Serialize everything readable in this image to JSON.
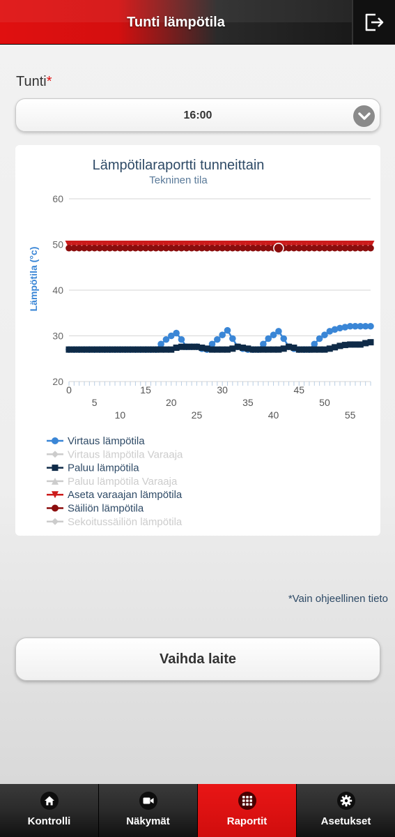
{
  "header": {
    "title": "Tunti lämpötila"
  },
  "hour_field": {
    "label": "Tunti",
    "required_mark": "*",
    "value": "16:00"
  },
  "chart_data": {
    "type": "line",
    "title": "Lämpötilaraportti tunneittain",
    "subtitle": "Tekninen tila",
    "ylabel": "Lämpötila (°c)",
    "xlabel": "",
    "ylim": [
      20,
      60
    ],
    "yticks": [
      20,
      30,
      40,
      50,
      60
    ],
    "xlim": [
      0,
      59
    ],
    "xticks_row1": [
      "0",
      "15",
      "30",
      "45"
    ],
    "xticks_row2": [
      "5",
      "20",
      "35",
      "50"
    ],
    "xticks_row3": [
      "10",
      "25",
      "40",
      "55"
    ],
    "grid": true,
    "legend_position": "bottom",
    "series": [
      {
        "name": "Virtaus lämpötila",
        "color": "#3a86d6",
        "marker": "circle",
        "visible": true,
        "points": [
          [
            0,
            27
          ],
          [
            1,
            27
          ],
          [
            2,
            27
          ],
          [
            3,
            27
          ],
          [
            4,
            27
          ],
          [
            5,
            27
          ],
          [
            6,
            27
          ],
          [
            7,
            27
          ],
          [
            8,
            27
          ],
          [
            9,
            27
          ],
          [
            10,
            27
          ],
          [
            11,
            27
          ],
          [
            12,
            27
          ],
          [
            13,
            27
          ],
          [
            14,
            27
          ],
          [
            15,
            27
          ],
          [
            16,
            27
          ],
          [
            17,
            27
          ],
          [
            18,
            28.2
          ],
          [
            19,
            29.2
          ],
          [
            20,
            30
          ],
          [
            21,
            30.6
          ],
          [
            22,
            29.2
          ],
          [
            23,
            27.6
          ],
          [
            24,
            27.6
          ],
          [
            25,
            27.6
          ],
          [
            26,
            27.2
          ],
          [
            27,
            27
          ],
          [
            28,
            28.2
          ],
          [
            29,
            29.2
          ],
          [
            30,
            30.2
          ],
          [
            31,
            31.2
          ],
          [
            32,
            29.4
          ],
          [
            33,
            27.6
          ],
          [
            34,
            27.2
          ],
          [
            35,
            27
          ],
          [
            36,
            27
          ],
          [
            37,
            27
          ],
          [
            38,
            28.2
          ],
          [
            39,
            29.4
          ],
          [
            40,
            30.2
          ],
          [
            41,
            31
          ],
          [
            42,
            29.4
          ],
          [
            43,
            27.6
          ],
          [
            44,
            27.2
          ],
          [
            45,
            27
          ],
          [
            46,
            27
          ],
          [
            47,
            27
          ],
          [
            48,
            28.2
          ],
          [
            49,
            29.4
          ],
          [
            50,
            30.2
          ],
          [
            51,
            31
          ],
          [
            52,
            31.4
          ],
          [
            53,
            31.7
          ],
          [
            54,
            31.9
          ],
          [
            55,
            32.1
          ],
          [
            56,
            32.1
          ],
          [
            57,
            32.1
          ],
          [
            58,
            32.1
          ],
          [
            59,
            32.1
          ]
        ]
      },
      {
        "name": "Virtaus lämpötila Varaaja",
        "color": "#c8c8c8",
        "marker": "diamond",
        "visible": false,
        "points": []
      },
      {
        "name": "Paluu lämpötila",
        "color": "#0e2a47",
        "marker": "square",
        "visible": true,
        "points": [
          [
            0,
            27
          ],
          [
            1,
            27
          ],
          [
            2,
            27
          ],
          [
            3,
            27
          ],
          [
            4,
            27
          ],
          [
            5,
            27
          ],
          [
            6,
            27
          ],
          [
            7,
            27
          ],
          [
            8,
            27
          ],
          [
            9,
            27
          ],
          [
            10,
            27
          ],
          [
            11,
            27
          ],
          [
            12,
            27
          ],
          [
            13,
            27
          ],
          [
            14,
            27
          ],
          [
            15,
            27
          ],
          [
            16,
            27
          ],
          [
            17,
            27
          ],
          [
            18,
            27
          ],
          [
            19,
            27
          ],
          [
            20,
            27
          ],
          [
            21,
            27.4
          ],
          [
            22,
            27.6
          ],
          [
            23,
            27.6
          ],
          [
            24,
            27.6
          ],
          [
            25,
            27.6
          ],
          [
            26,
            27.4
          ],
          [
            27,
            27.2
          ],
          [
            28,
            27
          ],
          [
            29,
            27
          ],
          [
            30,
            27
          ],
          [
            31,
            27
          ],
          [
            32,
            27.2
          ],
          [
            33,
            27.6
          ],
          [
            34,
            27.4
          ],
          [
            35,
            27.2
          ],
          [
            36,
            27
          ],
          [
            37,
            27
          ],
          [
            38,
            27
          ],
          [
            39,
            27
          ],
          [
            40,
            27
          ],
          [
            41,
            27
          ],
          [
            42,
            27.2
          ],
          [
            43,
            27.6
          ],
          [
            44,
            27.4
          ],
          [
            45,
            27
          ],
          [
            46,
            27
          ],
          [
            47,
            27
          ],
          [
            48,
            27
          ],
          [
            49,
            27
          ],
          [
            50,
            27
          ],
          [
            51,
            27.2
          ],
          [
            52,
            27.5
          ],
          [
            53,
            27.8
          ],
          [
            54,
            28
          ],
          [
            55,
            28.1
          ],
          [
            56,
            28.1
          ],
          [
            57,
            28.1
          ],
          [
            58,
            28.4
          ],
          [
            59,
            28.6
          ]
        ]
      },
      {
        "name": "Paluu lämpötila Varaaja",
        "color": "#c8c8c8",
        "marker": "triangle",
        "visible": false,
        "points": []
      },
      {
        "name": "Aseta varaajan lämpötila",
        "color": "#cc1b1b",
        "marker": "triangle-down",
        "visible": true,
        "points": [
          [
            0,
            50
          ],
          [
            1,
            50
          ],
          [
            2,
            50
          ],
          [
            3,
            50
          ],
          [
            4,
            50
          ],
          [
            5,
            50
          ],
          [
            6,
            50
          ],
          [
            7,
            50
          ],
          [
            8,
            50
          ],
          [
            9,
            50
          ],
          [
            10,
            50
          ],
          [
            11,
            50
          ],
          [
            12,
            50
          ],
          [
            13,
            50
          ],
          [
            14,
            50
          ],
          [
            15,
            50
          ],
          [
            16,
            50
          ],
          [
            17,
            50
          ],
          [
            18,
            50
          ],
          [
            19,
            50
          ],
          [
            20,
            50
          ],
          [
            21,
            50
          ],
          [
            22,
            50
          ],
          [
            23,
            50
          ],
          [
            24,
            50
          ],
          [
            25,
            50
          ],
          [
            26,
            50
          ],
          [
            27,
            50
          ],
          [
            28,
            50
          ],
          [
            29,
            50
          ],
          [
            30,
            50
          ],
          [
            31,
            50
          ],
          [
            32,
            50
          ],
          [
            33,
            50
          ],
          [
            34,
            50
          ],
          [
            35,
            50
          ],
          [
            36,
            50
          ],
          [
            37,
            50
          ],
          [
            38,
            50
          ],
          [
            39,
            50
          ],
          [
            40,
            50
          ],
          [
            41,
            50
          ],
          [
            42,
            50
          ],
          [
            43,
            50
          ],
          [
            44,
            50
          ],
          [
            45,
            50
          ],
          [
            46,
            50
          ],
          [
            47,
            50
          ],
          [
            48,
            50
          ],
          [
            49,
            50
          ],
          [
            50,
            50
          ],
          [
            51,
            50
          ],
          [
            52,
            50
          ],
          [
            53,
            50
          ],
          [
            54,
            50
          ],
          [
            55,
            50
          ],
          [
            56,
            50
          ],
          [
            57,
            50
          ],
          [
            58,
            50
          ],
          [
            59,
            50
          ]
        ]
      },
      {
        "name": "Säiliön lämpötila",
        "color": "#8b0d0d",
        "marker": "circle",
        "visible": true,
        "points": [
          [
            0,
            49.2
          ],
          [
            1,
            49.2
          ],
          [
            2,
            49.2
          ],
          [
            3,
            49.2
          ],
          [
            4,
            49.2
          ],
          [
            5,
            49.2
          ],
          [
            6,
            49.2
          ],
          [
            7,
            49.2
          ],
          [
            8,
            49.2
          ],
          [
            9,
            49.2
          ],
          [
            10,
            49.2
          ],
          [
            11,
            49.2
          ],
          [
            12,
            49.2
          ],
          [
            13,
            49.2
          ],
          [
            14,
            49.2
          ],
          [
            15,
            49.2
          ],
          [
            16,
            49.2
          ],
          [
            17,
            49.2
          ],
          [
            18,
            49.2
          ],
          [
            19,
            49.2
          ],
          [
            20,
            49.2
          ],
          [
            21,
            49.2
          ],
          [
            22,
            49.2
          ],
          [
            23,
            49.2
          ],
          [
            24,
            49.2
          ],
          [
            25,
            49.2
          ],
          [
            26,
            49.2
          ],
          [
            27,
            49.2
          ],
          [
            28,
            49.2
          ],
          [
            29,
            49.2
          ],
          [
            30,
            49.2
          ],
          [
            31,
            49.2
          ],
          [
            32,
            49.2
          ],
          [
            33,
            49.2
          ],
          [
            34,
            49.2
          ],
          [
            35,
            49.2
          ],
          [
            36,
            49.2
          ],
          [
            37,
            49.2
          ],
          [
            38,
            49.2
          ],
          [
            39,
            49.2
          ],
          [
            40,
            49.2
          ],
          [
            41,
            49.2
          ],
          [
            42,
            49.2
          ],
          [
            43,
            49.2
          ],
          [
            44,
            49.2
          ],
          [
            45,
            49.2
          ],
          [
            46,
            49.2
          ],
          [
            47,
            49.2
          ],
          [
            48,
            49.2
          ],
          [
            49,
            49.2
          ],
          [
            50,
            49.2
          ],
          [
            51,
            49.2
          ],
          [
            52,
            49.2
          ],
          [
            53,
            49.2
          ],
          [
            54,
            49.2
          ],
          [
            55,
            49.2
          ],
          [
            56,
            49.2
          ],
          [
            57,
            49.2
          ],
          [
            58,
            49.2
          ],
          [
            59,
            49.2
          ]
        ]
      },
      {
        "name": "Sekoitussäiliön lämpötila",
        "color": "#c8c8c8",
        "marker": "diamond",
        "visible": false,
        "points": []
      }
    ]
  },
  "footnote": "*Vain ohjeellinen tieto",
  "change_device_button": "Vaihda laite",
  "bottom_nav": [
    {
      "label": "Kontrolli",
      "icon": "home-icon",
      "active": false
    },
    {
      "label": "Näkymät",
      "icon": "camera-icon",
      "active": false
    },
    {
      "label": "Raportit",
      "icon": "grid-icon",
      "active": true
    },
    {
      "label": "Asetukset",
      "icon": "gear-icon",
      "active": false
    }
  ]
}
